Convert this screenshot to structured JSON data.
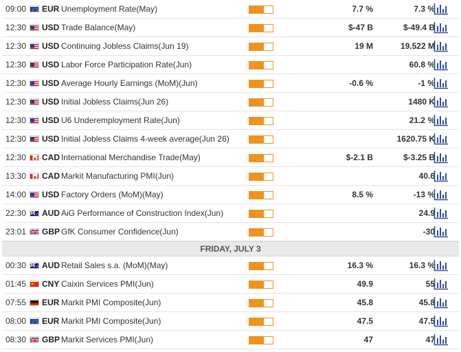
{
  "colors": {
    "impact_fill": "#f0921e",
    "impact_border": "#e89520",
    "icon_blue": "#2a4f9a",
    "day_header_bg": "#e9e9e9"
  },
  "events_top": [
    {
      "time": "09:00",
      "flag": "eu",
      "currency": "EUR",
      "event": "Unemployment Rate(May)",
      "actual": "7.7 %",
      "consensus": "7.3 %",
      "impact": 0.62
    },
    {
      "time": "12:30",
      "flag": "us",
      "currency": "USD",
      "event": "Trade Balance(May)",
      "actual": "$-47 B",
      "consensus": "$-49.4 B",
      "impact": 0.62
    },
    {
      "time": "12:30",
      "flag": "us",
      "currency": "USD",
      "event": "Continuing Jobless Claims(Jun 19)",
      "actual": "19 M",
      "consensus": "19.522 M",
      "impact": 0.62
    },
    {
      "time": "12:30",
      "flag": "us",
      "currency": "USD",
      "event": "Labor Force Participation Rate(Jun)",
      "actual": "",
      "consensus": "60.8 %",
      "impact": 0.62
    },
    {
      "time": "12:30",
      "flag": "us",
      "currency": "USD",
      "event": "Average Hourly Earnings (MoM)(Jun)",
      "actual": "-0.6 %",
      "consensus": "-1 %",
      "impact": 0.62
    },
    {
      "time": "12:30",
      "flag": "us",
      "currency": "USD",
      "event": "Initial Jobless Claims(Jun 26)",
      "actual": "",
      "consensus": "1480 K",
      "impact": 0.62
    },
    {
      "time": "12:30",
      "flag": "us",
      "currency": "USD",
      "event": "U6 Underemployment Rate(Jun)",
      "actual": "",
      "consensus": "21.2 %",
      "impact": 0.62
    },
    {
      "time": "12:30",
      "flag": "us",
      "currency": "USD",
      "event": "Initial Jobless Claims 4-week average(Jun 26)",
      "actual": "",
      "consensus": "1620.75 K",
      "impact": 0.62
    },
    {
      "time": "12:30",
      "flag": "ca",
      "currency": "CAD",
      "event": "International Merchandise Trade(May)",
      "actual": "$-2.1 B",
      "consensus": "$-3.25 B",
      "impact": 0.62
    },
    {
      "time": "13:30",
      "flag": "ca",
      "currency": "CAD",
      "event": "Markit Manufacturing PMI(Jun)",
      "actual": "",
      "consensus": "40.6",
      "impact": 0.62
    },
    {
      "time": "14:00",
      "flag": "us",
      "currency": "USD",
      "event": "Factory Orders (MoM)(May)",
      "actual": "8.5 %",
      "consensus": "-13 %",
      "impact": 0.62
    },
    {
      "time": "22:30",
      "flag": "au",
      "currency": "AUD",
      "event": "AiG Performance of Construction Index(Jun)",
      "actual": "",
      "consensus": "24.9",
      "impact": 0.62
    },
    {
      "time": "23:01",
      "flag": "gb",
      "currency": "GBP",
      "event": "GfK Consumer Confidence(Jun)",
      "actual": "",
      "consensus": "-30",
      "impact": 0.62
    }
  ],
  "day_header": "FRIDAY, JULY 3",
  "events_bottom": [
    {
      "time": "00:30",
      "flag": "au",
      "currency": "AUD",
      "event": "Retail Sales s.a. (MoM)(May)",
      "actual": "16.3 %",
      "consensus": "16.3 %",
      "impact": 0.62
    },
    {
      "time": "01:45",
      "flag": "cn",
      "currency": "CNY",
      "event": "Caixin Services PMI(Jun)",
      "actual": "49.9",
      "consensus": "55",
      "impact": 0.62
    },
    {
      "time": "07:55",
      "flag": "de",
      "currency": "EUR",
      "event": "Markit PMI Composite(Jun)",
      "actual": "45.8",
      "consensus": "45.8",
      "impact": 0.62
    },
    {
      "time": "08:00",
      "flag": "eu",
      "currency": "EUR",
      "event": "Markit PMI Composite(Jun)",
      "actual": "47.5",
      "consensus": "47.5",
      "impact": 0.62
    },
    {
      "time": "08:30",
      "flag": "gb",
      "currency": "GBP",
      "event": "Markit Services PMI(Jun)",
      "actual": "47",
      "consensus": "47",
      "impact": 0.62
    }
  ]
}
